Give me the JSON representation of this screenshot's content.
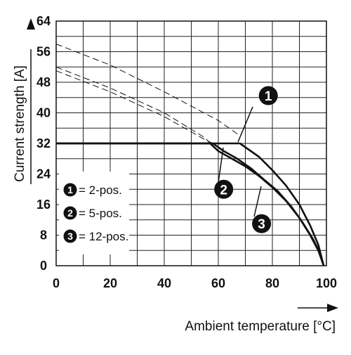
{
  "chart_data": {
    "type": "line",
    "xlabel": "Ambient temperature [°C]",
    "ylabel": "Current strength [A]",
    "xlim": [
      0,
      100
    ],
    "ylim": [
      0,
      64
    ],
    "x_ticks": [
      0,
      20,
      40,
      60,
      80,
      100
    ],
    "y_ticks": [
      0,
      8,
      16,
      24,
      32,
      40,
      48,
      56,
      64
    ],
    "grid": true,
    "legend": [
      {
        "marker": "1",
        "label": "= 2-pos."
      },
      {
        "marker": "2",
        "label": "= 5-pos."
      },
      {
        "marker": "3",
        "label": "= 12-pos."
      }
    ],
    "series": [
      {
        "name": "1",
        "style": "solid",
        "x": [
          0,
          68,
          75,
          80,
          85,
          90,
          94,
          97,
          99
        ],
        "y": [
          32,
          32,
          28.5,
          25,
          21,
          16,
          10.5,
          5.5,
          0
        ]
      },
      {
        "name": "2",
        "style": "solid",
        "x": [
          0,
          57,
          60,
          65,
          70,
          75,
          80,
          85,
          90,
          94,
          97,
          99
        ],
        "y": [
          32,
          32,
          30,
          28,
          26,
          23.5,
          20.5,
          17,
          12.5,
          8,
          4,
          0
        ]
      },
      {
        "name": "3",
        "style": "solid",
        "x": [
          0,
          58,
          62,
          67,
          72,
          77,
          82,
          87,
          91,
          95,
          97.5,
          99
        ],
        "y": [
          32,
          32,
          30,
          28,
          25.5,
          22.5,
          19.5,
          15.5,
          11.5,
          7,
          3.5,
          0
        ]
      },
      {
        "name": "1",
        "style": "dashed",
        "x": [
          0,
          20,
          40,
          60,
          68
        ],
        "y": [
          58,
          52.5,
          45.5,
          38,
          34
        ]
      },
      {
        "name": "2",
        "style": "dashed",
        "x": [
          0,
          20,
          40,
          55,
          57
        ],
        "y": [
          52,
          46.5,
          40,
          33.5,
          32
        ]
      },
      {
        "name": "3",
        "style": "dashed",
        "x": [
          0,
          20,
          40,
          55,
          58
        ],
        "y": [
          51,
          45.5,
          39,
          33,
          32
        ]
      }
    ],
    "markers": [
      {
        "label": "1",
        "x": 78.5,
        "y": 44.5
      },
      {
        "label": "2",
        "x": 62,
        "y": 20
      },
      {
        "label": "3",
        "x": 76,
        "y": 11
      }
    ]
  }
}
